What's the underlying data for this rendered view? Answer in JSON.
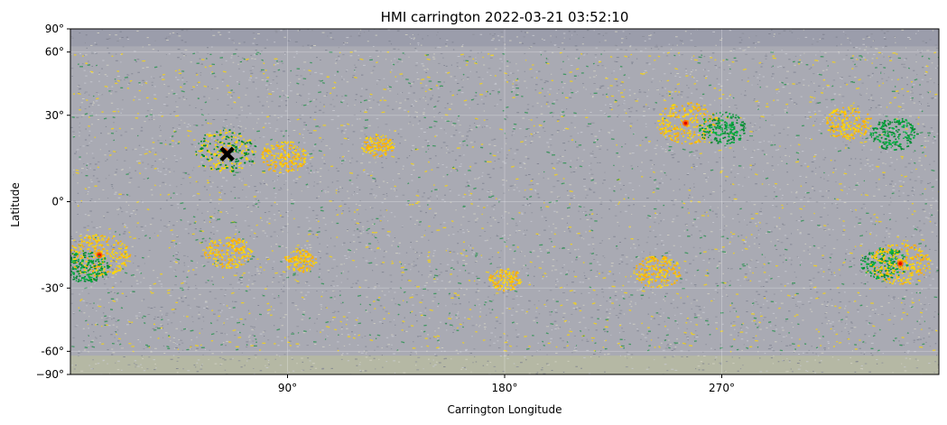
{
  "chart_data": {
    "type": "heatmap",
    "title": "HMI carrington 2022-03-21 03:52:10",
    "xlabel": "Carrington Longitude",
    "ylabel": "Latitude",
    "xlim": [
      0,
      360
    ],
    "ylim": [
      -90,
      90
    ],
    "y_scale": "sine latitude (cylindrical equal-area)",
    "x_ticks": [
      {
        "value": 90,
        "label": "90°"
      },
      {
        "value": 180,
        "label": "180°"
      },
      {
        "value": 270,
        "label": "270°"
      }
    ],
    "y_ticks": [
      {
        "value": 90,
        "label": "90°"
      },
      {
        "value": 60,
        "label": "60°"
      },
      {
        "value": 30,
        "label": "30°"
      },
      {
        "value": 0,
        "label": "0°"
      },
      {
        "value": -30,
        "label": "-30°"
      },
      {
        "value": -60,
        "label": "-60°"
      },
      {
        "value": -90,
        "label": "−90°"
      }
    ],
    "grid": true,
    "background_color": "#a9aab3",
    "polar_band_color": "#b5b8a4",
    "colors": {
      "positive_field": "#ffd700",
      "strong_positive": "#e00000",
      "negative_field": "#008a2e",
      "strong_negative": "#1030d0"
    },
    "active_regions": [
      {
        "lon": 64,
        "lat": 17,
        "polarity": "mixed",
        "strength": "strong"
      },
      {
        "lon": 88,
        "lat": 15,
        "polarity": "positive",
        "strength": "medium"
      },
      {
        "lon": 127,
        "lat": 19,
        "polarity": "positive",
        "strength": "weak"
      },
      {
        "lon": 255,
        "lat": 27,
        "polarity": "positive",
        "strength": "strong"
      },
      {
        "lon": 270,
        "lat": 25,
        "polarity": "negative",
        "strength": "medium"
      },
      {
        "lon": 322,
        "lat": 27,
        "polarity": "positive",
        "strength": "medium"
      },
      {
        "lon": 341,
        "lat": 23,
        "polarity": "negative",
        "strength": "medium"
      },
      {
        "lon": 12,
        "lat": -18,
        "polarity": "positive",
        "strength": "strong"
      },
      {
        "lon": 6,
        "lat": -22,
        "polarity": "negative",
        "strength": "medium"
      },
      {
        "lon": 65,
        "lat": -17,
        "polarity": "positive",
        "strength": "medium"
      },
      {
        "lon": 95,
        "lat": -20,
        "polarity": "positive",
        "strength": "weak"
      },
      {
        "lon": 180,
        "lat": -27,
        "polarity": "positive",
        "strength": "weak"
      },
      {
        "lon": 243,
        "lat": -24,
        "polarity": "positive",
        "strength": "medium"
      },
      {
        "lon": 337,
        "lat": -21,
        "polarity": "negative",
        "strength": "medium"
      },
      {
        "lon": 344,
        "lat": -21,
        "polarity": "positive",
        "strength": "strong"
      }
    ],
    "marker": {
      "lon": 65,
      "lat": 16,
      "symbol": "X",
      "color": "#000000"
    }
  }
}
